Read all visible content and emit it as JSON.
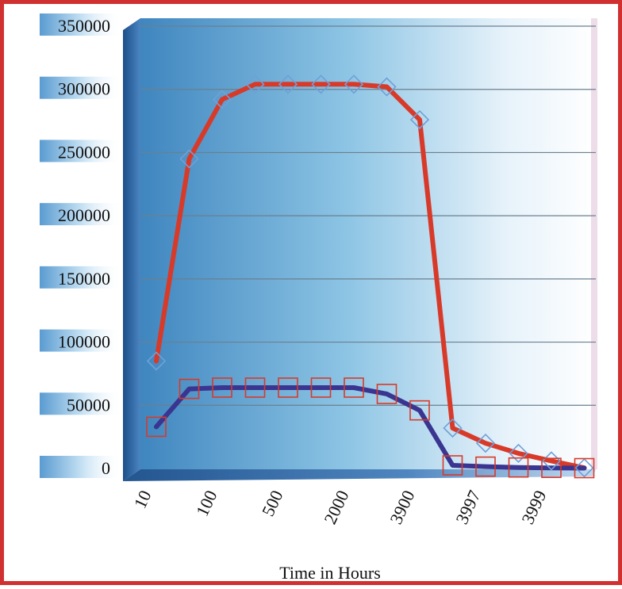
{
  "chart_data": {
    "type": "line",
    "title": "",
    "xlabel": "Time in Hours",
    "ylabel": "",
    "ylim": [
      0,
      350000
    ],
    "yticks": [
      0,
      50000,
      100000,
      150000,
      200000,
      250000,
      300000,
      350000
    ],
    "ytick_labels": [
      "0",
      "50000",
      "100000",
      "150000",
      "200000",
      "250000",
      "300000",
      "350000"
    ],
    "categories": [
      "10",
      "",
      "100",
      "",
      "500",
      "",
      "2000",
      "",
      "3900",
      "",
      "3997",
      "",
      "3999",
      ""
    ],
    "grid": true,
    "legend": "none",
    "series": [
      {
        "color": "#d83a2a",
        "marker": "diamond",
        "marker_color": "#6fa0d8",
        "values": [
          85000,
          245000,
          292000,
          304000,
          304000,
          304000,
          304000,
          302000,
          276000,
          32000,
          20000,
          12000,
          6000,
          500
        ]
      },
      {
        "color": "#3a3590",
        "marker": "square",
        "marker_color": "#d83a2a",
        "values": [
          33000,
          63000,
          64000,
          64000,
          64000,
          64000,
          64000,
          59000,
          46000,
          2500,
          1500,
          800,
          500,
          300
        ]
      }
    ]
  }
}
